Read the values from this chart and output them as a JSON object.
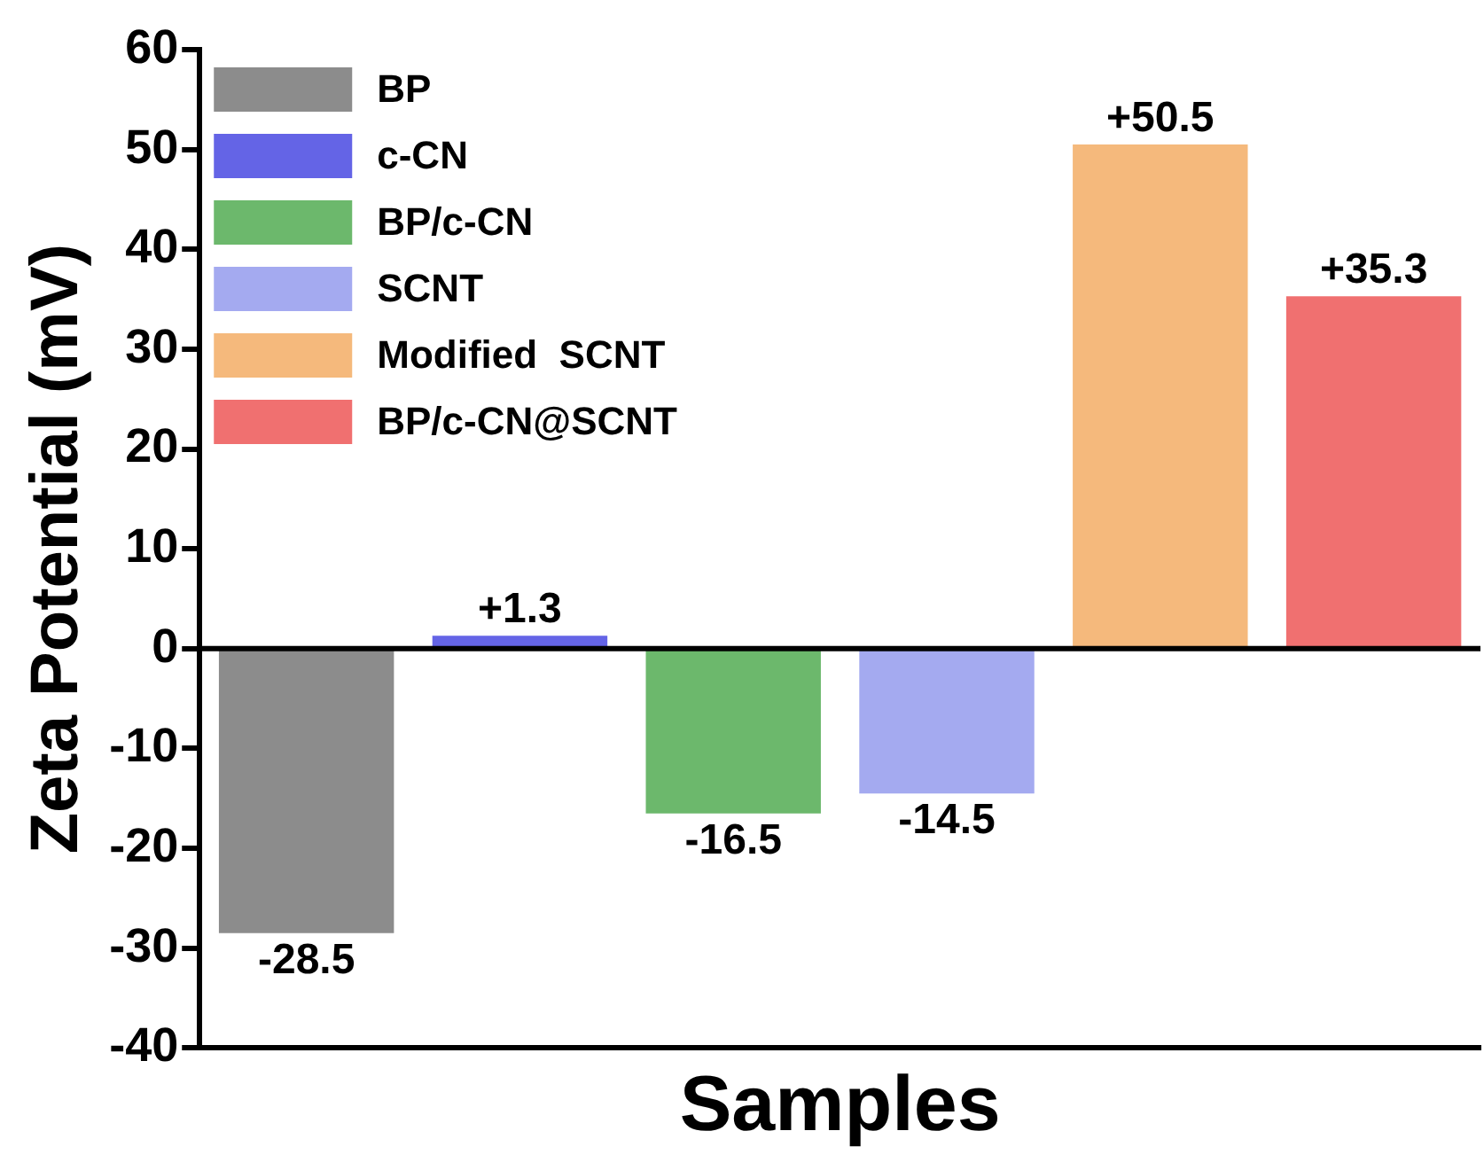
{
  "chart_data": {
    "type": "bar",
    "xlabel": "Samples",
    "ylabel": "Zeta Potential (mV)",
    "categories": [
      null,
      null,
      null,
      null,
      null,
      null
    ],
    "series": [
      {
        "name": "BP",
        "color": "#8c8c8c",
        "values": [
          -28.5,
          null,
          null,
          null,
          null,
          null
        ],
        "value_labels": [
          "-28.5",
          null,
          null,
          null,
          null,
          null
        ]
      },
      {
        "name": "c-CN",
        "color": "#6464e6",
        "values": [
          null,
          1.3,
          null,
          null,
          null,
          null
        ],
        "value_labels": [
          null,
          "+1.3",
          null,
          null,
          null,
          null
        ]
      },
      {
        "name": "BP/c-CN",
        "color": "#6cb86c",
        "values": [
          null,
          null,
          -16.5,
          null,
          null,
          null
        ],
        "value_labels": [
          null,
          null,
          "-16.5",
          null,
          null,
          null
        ]
      },
      {
        "name": "SCNT",
        "color": "#a4aaf0",
        "values": [
          null,
          null,
          null,
          -14.5,
          null,
          null
        ],
        "value_labels": [
          null,
          null,
          null,
          "-14.5",
          null,
          null
        ]
      },
      {
        "name": "Modified  SCNT",
        "color": "#f5b97c",
        "values": [
          null,
          null,
          null,
          null,
          50.5,
          null
        ],
        "value_labels": [
          null,
          null,
          null,
          null,
          "+50.5",
          null
        ]
      },
      {
        "name": "BP/c-CN@SCNT",
        "color": "#f07070",
        "values": [
          null,
          null,
          null,
          null,
          null,
          35.3
        ],
        "value_labels": [
          null,
          null,
          null,
          null,
          null,
          "+35.3"
        ]
      }
    ],
    "ylim": [
      -40,
      60
    ],
    "yticks": [
      -40,
      -30,
      -20,
      -10,
      0,
      10,
      20,
      30,
      40,
      50,
      60
    ],
    "ref_lines": [
      {
        "axis": "y",
        "value": 0,
        "color": "#000000"
      }
    ],
    "grid": false,
    "legend": "top left",
    "tick_labels": "y"
  }
}
